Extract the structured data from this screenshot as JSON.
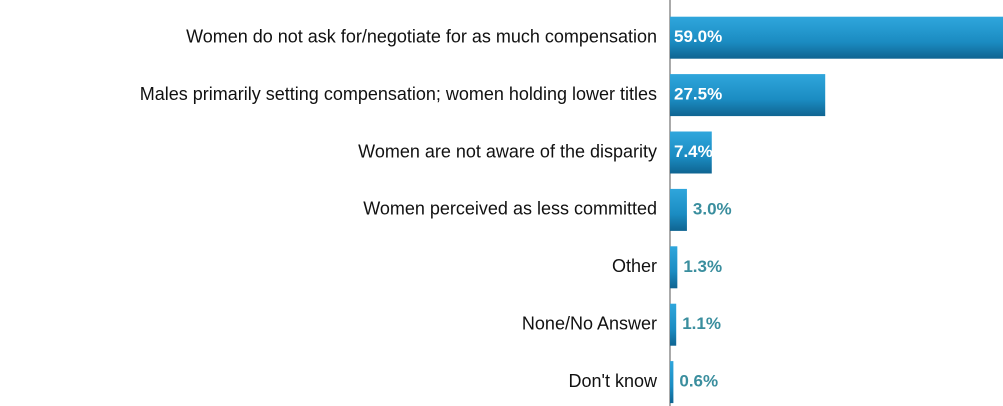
{
  "chart_data": {
    "type": "bar",
    "orientation": "horizontal",
    "categories": [
      "Women do not ask for/negotiate for as much compensation",
      "Males primarily setting compensation; women holding lower titles",
      "Women are not aware of the disparity",
      "Women perceived as less committed",
      "Other",
      "None/No Answer",
      "Don't know"
    ],
    "values": [
      59.0,
      27.5,
      7.4,
      3.0,
      1.3,
      1.1,
      0.6
    ],
    "value_labels": [
      "59.0%",
      "27.5%",
      "7.4%",
      "3.0%",
      "1.3%",
      "1.1%",
      "0.6%"
    ],
    "color": "#1b8cc2"
  }
}
